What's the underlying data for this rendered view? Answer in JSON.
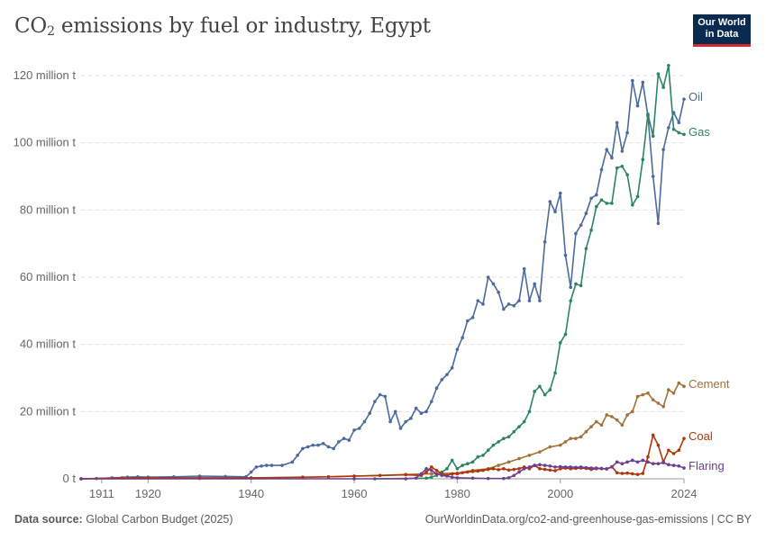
{
  "title": {
    "prefix": "CO",
    "sub": "2",
    "rest": " emissions by fuel or industry, Egypt"
  },
  "logo": {
    "line1": "Our World",
    "line2": "in Data"
  },
  "footer": {
    "source_label": "Data source:",
    "source_value": "Global Carbon Budget (2025)",
    "url_text": "OurWorldinData.org/co2-and-greenhouse-gas-emissions | CC BY"
  },
  "chart_data": {
    "type": "line",
    "x_range": [
      1907,
      2024
    ],
    "y_range": [
      0,
      120
    ],
    "y_ticks": [
      {
        "value": 0,
        "label": "0 t"
      },
      {
        "value": 20,
        "label": "20 million t"
      },
      {
        "value": 40,
        "label": "40 million t"
      },
      {
        "value": 60,
        "label": "60 million t"
      },
      {
        "value": 80,
        "label": "80 million t"
      },
      {
        "value": 100,
        "label": "100 million t"
      },
      {
        "value": 120,
        "label": "120 million t"
      }
    ],
    "x_ticks": [
      1911,
      1920,
      1940,
      1960,
      1980,
      2000,
      2024
    ],
    "grid": "horizontal-dashed",
    "legend": "inline-right",
    "colors": {
      "Oil": "#4c6a9c",
      "Gas": "#2c8465",
      "Cement": "#a2703b",
      "Coal": "#b13507",
      "Flaring": "#6d3e91"
    },
    "series": [
      {
        "name": "Oil",
        "points": [
          [
            1907,
            0
          ],
          [
            1910,
            0.1
          ],
          [
            1913,
            0.3
          ],
          [
            1916,
            0.5
          ],
          [
            1918,
            0.6
          ],
          [
            1920,
            0.5
          ],
          [
            1925,
            0.6
          ],
          [
            1930,
            0.8
          ],
          [
            1935,
            0.7
          ],
          [
            1939,
            0.6
          ],
          [
            1940,
            2
          ],
          [
            1941,
            3.5
          ],
          [
            1942,
            3.8
          ],
          [
            1943,
            4
          ],
          [
            1944,
            4
          ],
          [
            1946,
            4
          ],
          [
            1948,
            5
          ],
          [
            1949,
            7
          ],
          [
            1950,
            9
          ],
          [
            1951,
            9.5
          ],
          [
            1952,
            10
          ],
          [
            1953,
            10
          ],
          [
            1954,
            10.5
          ],
          [
            1955,
            9.5
          ],
          [
            1956,
            9
          ],
          [
            1957,
            11
          ],
          [
            1958,
            12
          ],
          [
            1959,
            11.5
          ],
          [
            1960,
            14.5
          ],
          [
            1961,
            15
          ],
          [
            1962,
            17
          ],
          [
            1963,
            19.5
          ],
          [
            1964,
            23
          ],
          [
            1965,
            25
          ],
          [
            1966,
            24.5
          ],
          [
            1967,
            17
          ],
          [
            1968,
            20
          ],
          [
            1969,
            15
          ],
          [
            1970,
            17
          ],
          [
            1971,
            18
          ],
          [
            1972,
            21
          ],
          [
            1973,
            19.5
          ],
          [
            1974,
            20
          ],
          [
            1975,
            23
          ],
          [
            1976,
            27
          ],
          [
            1977,
            29.5
          ],
          [
            1978,
            31
          ],
          [
            1979,
            33
          ],
          [
            1980,
            38.5
          ],
          [
            1981,
            42
          ],
          [
            1982,
            47
          ],
          [
            1983,
            48
          ],
          [
            1984,
            53
          ],
          [
            1985,
            52
          ],
          [
            1986,
            60
          ],
          [
            1987,
            58
          ],
          [
            1988,
            55.5
          ],
          [
            1989,
            50.5
          ],
          [
            1990,
            52
          ],
          [
            1991,
            51.5
          ],
          [
            1992,
            53
          ],
          [
            1993,
            62.5
          ],
          [
            1994,
            53
          ],
          [
            1995,
            58
          ],
          [
            1996,
            53
          ],
          [
            1997,
            70.5
          ],
          [
            1998,
            82.5
          ],
          [
            1999,
            79.5
          ],
          [
            2000,
            85
          ],
          [
            2001,
            66.5
          ],
          [
            2002,
            57
          ],
          [
            2003,
            73
          ],
          [
            2004,
            75.5
          ],
          [
            2005,
            79
          ],
          [
            2006,
            83.5
          ],
          [
            2007,
            84.5
          ],
          [
            2008,
            92
          ],
          [
            2009,
            98
          ],
          [
            2010,
            95.5
          ],
          [
            2011,
            106
          ],
          [
            2012,
            97.5
          ],
          [
            2013,
            103
          ],
          [
            2014,
            118.5
          ],
          [
            2015,
            111
          ],
          [
            2016,
            118
          ],
          [
            2017,
            108
          ],
          [
            2018,
            90
          ],
          [
            2019,
            76
          ],
          [
            2020,
            98
          ],
          [
            2021,
            104.5
          ],
          [
            2022,
            109
          ],
          [
            2023,
            106
          ],
          [
            2024,
            113
          ]
        ]
      },
      {
        "name": "Gas",
        "points": [
          [
            1964,
            0
          ],
          [
            1974,
            0.2
          ],
          [
            1975,
            0.5
          ],
          [
            1976,
            1
          ],
          [
            1977,
            2
          ],
          [
            1978,
            3
          ],
          [
            1979,
            5.5
          ],
          [
            1980,
            3
          ],
          [
            1981,
            4
          ],
          [
            1982,
            4.5
          ],
          [
            1983,
            5
          ],
          [
            1984,
            6.5
          ],
          [
            1985,
            7
          ],
          [
            1986,
            8.5
          ],
          [
            1987,
            10
          ],
          [
            1988,
            11
          ],
          [
            1989,
            12
          ],
          [
            1990,
            12.5
          ],
          [
            1991,
            14
          ],
          [
            1992,
            15.5
          ],
          [
            1993,
            17
          ],
          [
            1994,
            20
          ],
          [
            1995,
            26
          ],
          [
            1996,
            27.5
          ],
          [
            1997,
            25
          ],
          [
            1998,
            26.5
          ],
          [
            1999,
            31.5
          ],
          [
            2000,
            40.5
          ],
          [
            2001,
            43
          ],
          [
            2002,
            53
          ],
          [
            2003,
            58
          ],
          [
            2004,
            57.5
          ],
          [
            2005,
            68.5
          ],
          [
            2006,
            74
          ],
          [
            2007,
            81
          ],
          [
            2008,
            83
          ],
          [
            2009,
            82
          ],
          [
            2010,
            82
          ],
          [
            2011,
            92.5
          ],
          [
            2012,
            93
          ],
          [
            2013,
            90.5
          ],
          [
            2014,
            81.5
          ],
          [
            2015,
            84
          ],
          [
            2016,
            95
          ],
          [
            2017,
            108.5
          ],
          [
            2018,
            102
          ],
          [
            2019,
            120.5
          ],
          [
            2020,
            116.5
          ],
          [
            2021,
            123
          ],
          [
            2022,
            104
          ],
          [
            2023,
            103
          ],
          [
            2024,
            102.5
          ]
        ]
      },
      {
        "name": "Cement",
        "points": [
          [
            1907,
            0
          ],
          [
            1930,
            0.1
          ],
          [
            1940,
            0.2
          ],
          [
            1950,
            0.4
          ],
          [
            1955,
            0.6
          ],
          [
            1960,
            0.8
          ],
          [
            1965,
            1
          ],
          [
            1970,
            1.3
          ],
          [
            1975,
            1.5
          ],
          [
            1980,
            1.7
          ],
          [
            1983,
            2.5
          ],
          [
            1986,
            3
          ],
          [
            1988,
            4
          ],
          [
            1990,
            5
          ],
          [
            1992,
            6
          ],
          [
            1994,
            7
          ],
          [
            1996,
            8
          ],
          [
            1998,
            9.5
          ],
          [
            2000,
            10
          ],
          [
            2001,
            11
          ],
          [
            2002,
            12
          ],
          [
            2003,
            12
          ],
          [
            2004,
            12.5
          ],
          [
            2005,
            14
          ],
          [
            2006,
            15.5
          ],
          [
            2007,
            17
          ],
          [
            2008,
            16
          ],
          [
            2009,
            19
          ],
          [
            2010,
            18.5
          ],
          [
            2011,
            17.5
          ],
          [
            2012,
            16
          ],
          [
            2013,
            19
          ],
          [
            2014,
            20
          ],
          [
            2015,
            24.5
          ],
          [
            2016,
            25
          ],
          [
            2017,
            25.5
          ],
          [
            2018,
            23.5
          ],
          [
            2019,
            22.5
          ],
          [
            2020,
            21.5
          ],
          [
            2021,
            26.5
          ],
          [
            2022,
            25.5
          ],
          [
            2023,
            28.5
          ],
          [
            2024,
            27.5
          ]
        ]
      },
      {
        "name": "Coal",
        "points": [
          [
            1907,
            0
          ],
          [
            1915,
            0.3
          ],
          [
            1920,
            0.3
          ],
          [
            1930,
            0.3
          ],
          [
            1940,
            0.3
          ],
          [
            1950,
            0.5
          ],
          [
            1955,
            0.6
          ],
          [
            1960,
            0.8
          ],
          [
            1965,
            1
          ],
          [
            1970,
            1.2
          ],
          [
            1973,
            1
          ],
          [
            1974,
            2
          ],
          [
            1975,
            3.5
          ],
          [
            1976,
            2.5
          ],
          [
            1977,
            1.5
          ],
          [
            1978,
            1
          ],
          [
            1979,
            1.5
          ],
          [
            1980,
            1.5
          ],
          [
            1981,
            1.8
          ],
          [
            1982,
            2
          ],
          [
            1983,
            2.2
          ],
          [
            1984,
            2.3
          ],
          [
            1985,
            2.5
          ],
          [
            1986,
            2.8
          ],
          [
            1987,
            3
          ],
          [
            1988,
            2.7
          ],
          [
            1989,
            3
          ],
          [
            1990,
            2.6
          ],
          [
            1991,
            2.8
          ],
          [
            1992,
            3
          ],
          [
            1993,
            3.5
          ],
          [
            1994,
            3
          ],
          [
            1995,
            4
          ],
          [
            1996,
            3
          ],
          [
            1997,
            2.8
          ],
          [
            1998,
            2.6
          ],
          [
            1999,
            2.4
          ],
          [
            2000,
            3
          ],
          [
            2001,
            3.2
          ],
          [
            2002,
            3
          ],
          [
            2003,
            3.1
          ],
          [
            2004,
            3.2
          ],
          [
            2005,
            3.1
          ],
          [
            2006,
            2.8
          ],
          [
            2007,
            3
          ],
          [
            2008,
            3.1
          ],
          [
            2009,
            2.9
          ],
          [
            2010,
            3.6
          ],
          [
            2011,
            1.8
          ],
          [
            2012,
            1.6
          ],
          [
            2013,
            1.7
          ],
          [
            2014,
            1.5
          ],
          [
            2015,
            1.3
          ],
          [
            2016,
            1.6
          ],
          [
            2017,
            6.5
          ],
          [
            2018,
            13
          ],
          [
            2019,
            10
          ],
          [
            2020,
            5
          ],
          [
            2021,
            8.5
          ],
          [
            2022,
            7.5
          ],
          [
            2023,
            8.5
          ],
          [
            2024,
            12
          ]
        ]
      },
      {
        "name": "Flaring",
        "points": [
          [
            1907,
            0
          ],
          [
            1960,
            0
          ],
          [
            1970,
            0
          ],
          [
            1972,
            0.2
          ],
          [
            1973,
            1.5
          ],
          [
            1974,
            3
          ],
          [
            1975,
            2.5
          ],
          [
            1976,
            1.5
          ],
          [
            1977,
            1
          ],
          [
            1978,
            0.8
          ],
          [
            1979,
            0.5
          ],
          [
            1980,
            0.3
          ],
          [
            1983,
            0.2
          ],
          [
            1986,
            0.1
          ],
          [
            1989,
            0.1
          ],
          [
            1990,
            0.3
          ],
          [
            1991,
            1
          ],
          [
            1992,
            2
          ],
          [
            1993,
            3
          ],
          [
            1994,
            3.5
          ],
          [
            1995,
            4
          ],
          [
            1996,
            4.2
          ],
          [
            1997,
            4
          ],
          [
            1998,
            3.8
          ],
          [
            1999,
            3.5
          ],
          [
            2000,
            3.6
          ],
          [
            2001,
            3.5
          ],
          [
            2002,
            3.5
          ],
          [
            2003,
            3.4
          ],
          [
            2004,
            3.5
          ],
          [
            2005,
            3.3
          ],
          [
            2006,
            3.2
          ],
          [
            2007,
            3.2
          ],
          [
            2008,
            3
          ],
          [
            2009,
            3
          ],
          [
            2010,
            3.5
          ],
          [
            2011,
            5
          ],
          [
            2012,
            4.5
          ],
          [
            2013,
            5
          ],
          [
            2014,
            5.5
          ],
          [
            2015,
            5
          ],
          [
            2016,
            5.5
          ],
          [
            2017,
            5
          ],
          [
            2018,
            4.5
          ],
          [
            2019,
            4.5
          ],
          [
            2020,
            4.8
          ],
          [
            2021,
            4.2
          ],
          [
            2022,
            4
          ],
          [
            2023,
            3.8
          ],
          [
            2024,
            3.2
          ]
        ]
      }
    ],
    "label_order_hint": "end-of-line"
  }
}
